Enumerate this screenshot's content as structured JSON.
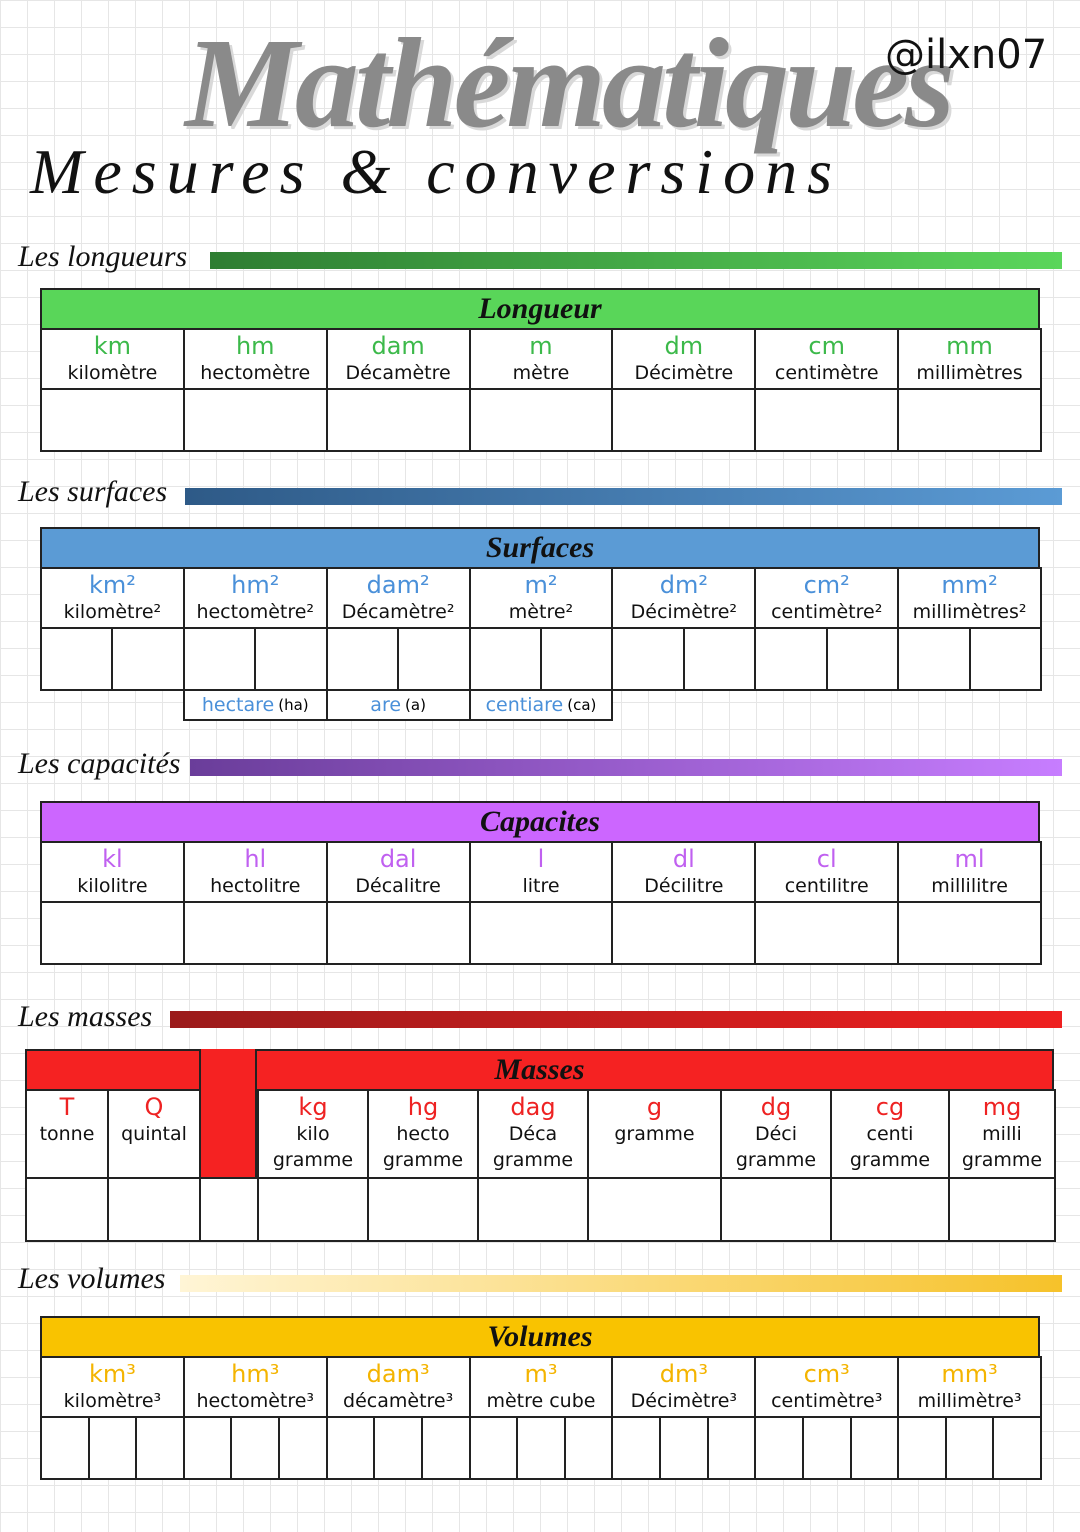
{
  "header": {
    "title": "Mathématiques",
    "subtitle": "Mesures & conversions",
    "handle": "@ilxn07"
  },
  "sections": [
    {
      "heading": "Les longueurs",
      "table_title": "Longueur",
      "columns": [
        {
          "unit": "km",
          "name": "kilomètre"
        },
        {
          "unit": "hm",
          "name": "hectomètre"
        },
        {
          "unit": "dam",
          "name": "Décamètre"
        },
        {
          "unit": "m",
          "name": "mètre"
        },
        {
          "unit": "dm",
          "name": "Décimètre"
        },
        {
          "unit": "cm",
          "name": "centimètre"
        },
        {
          "unit": "mm",
          "name": "millimètres"
        }
      ]
    },
    {
      "heading": "Les surfaces",
      "table_title": "Surfaces",
      "columns": [
        {
          "unit": "km²",
          "name": "kilomètre²"
        },
        {
          "unit": "hm²",
          "name": "hectomètre²"
        },
        {
          "unit": "dam²",
          "name": "Décamètre²"
        },
        {
          "unit": "m²",
          "name": "mètre²"
        },
        {
          "unit": "dm²",
          "name": "Décimètre²"
        },
        {
          "unit": "cm²",
          "name": "centimètre²"
        },
        {
          "unit": "mm²",
          "name": "millimètres²"
        }
      ],
      "extras": [
        {
          "name": "hectare",
          "abbr": "(ha)"
        },
        {
          "name": "are",
          "abbr": "(a)"
        },
        {
          "name": "centiare",
          "abbr": "(ca)"
        }
      ]
    },
    {
      "heading": "Les capacités",
      "table_title": "Capacites",
      "columns": [
        {
          "unit": "kl",
          "name": "kilolitre"
        },
        {
          "unit": "hl",
          "name": "hectolitre"
        },
        {
          "unit": "dal",
          "name": "Décalitre"
        },
        {
          "unit": "l",
          "name": "litre"
        },
        {
          "unit": "dl",
          "name": "Décilitre"
        },
        {
          "unit": "cl",
          "name": "centilitre"
        },
        {
          "unit": "ml",
          "name": "millilitre"
        }
      ]
    },
    {
      "heading": "Les masses",
      "table_title": "Masses",
      "columns": [
        {
          "unit": "T",
          "name": "tonne"
        },
        {
          "unit": "Q",
          "name": "quintal"
        },
        {
          "unit": "kg",
          "name": "kilo\ngramme"
        },
        {
          "unit": "hg",
          "name": "hecto\ngramme"
        },
        {
          "unit": "dag",
          "name": "Déca\ngramme"
        },
        {
          "unit": "g",
          "name": "gramme"
        },
        {
          "unit": "dg",
          "name": "Déci\ngramme"
        },
        {
          "unit": "cg",
          "name": "centi\ngramme"
        },
        {
          "unit": "mg",
          "name": "milli\ngramme"
        }
      ]
    },
    {
      "heading": "Les volumes",
      "table_title": "Volumes",
      "columns": [
        {
          "unit": "km³",
          "name": "kilomètre³"
        },
        {
          "unit": "hm³",
          "name": "hectomètre³"
        },
        {
          "unit": "dam³",
          "name": "décamètre³"
        },
        {
          "unit": "m³",
          "name": "mètre cube"
        },
        {
          "unit": "dm³",
          "name": "Décimètre³"
        },
        {
          "unit": "cm³",
          "name": "centimètre³"
        },
        {
          "unit": "mm³",
          "name": "millimètre³"
        }
      ]
    }
  ]
}
